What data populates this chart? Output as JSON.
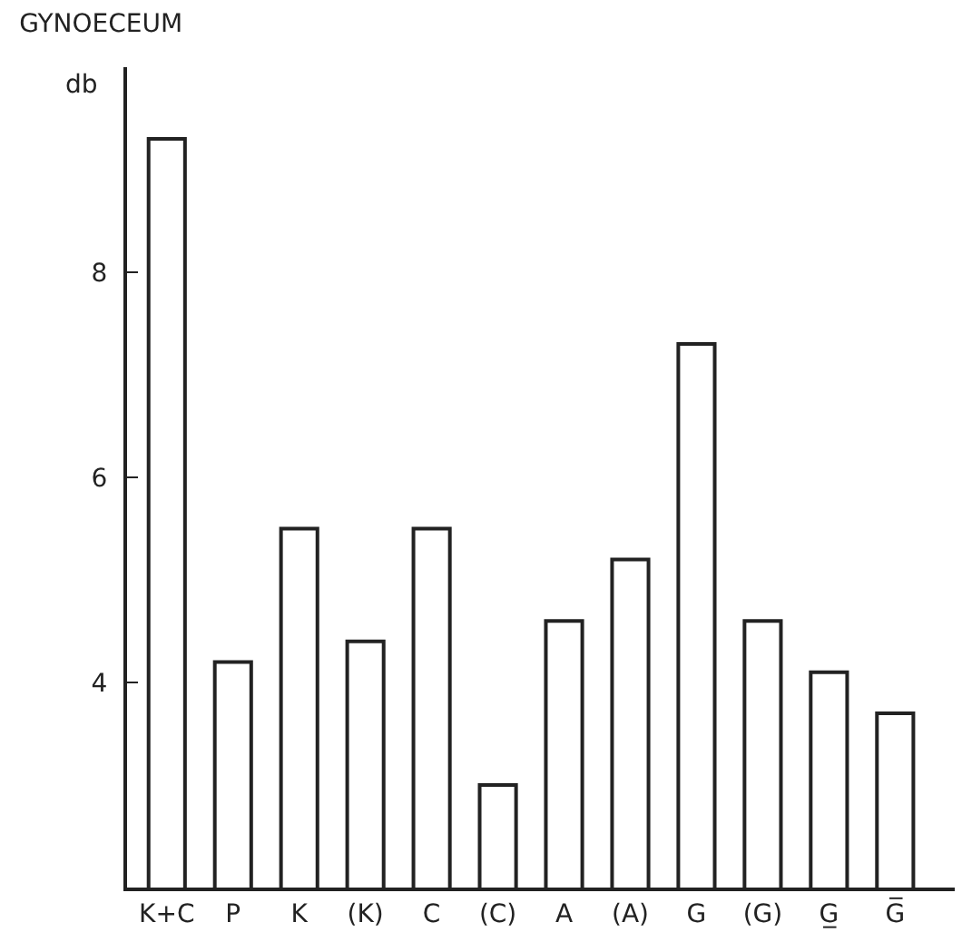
{
  "chart_data": {
    "type": "bar",
    "title": "GYNOECEUM",
    "ylabel": "db",
    "categories": [
      "K+C",
      "P",
      "K",
      "(K)",
      "C",
      "(C)",
      "A",
      "(A)",
      "G",
      "(G)",
      "G̲",
      "G̅"
    ],
    "values": [
      9.3,
      4.2,
      5.5,
      4.4,
      5.5,
      3.0,
      4.6,
      5.2,
      7.3,
      4.6,
      4.1,
      3.7
    ],
    "color": "#ffffff",
    "ylim": [
      2,
      10
    ],
    "yticks": [
      4,
      6,
      8
    ],
    "grid": false
  }
}
